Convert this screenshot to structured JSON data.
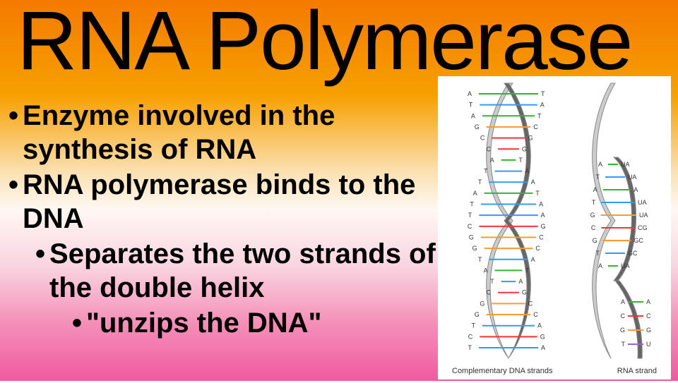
{
  "title": "RNA Polymerase",
  "bullets": {
    "b1": "Enzyme involved in the synthesis of RNA",
    "b2": "RNA polymerase binds to the DNA",
    "b3": "Separates the two strands of the double helix",
    "b4": "\"unzips the DNA\""
  },
  "bullet_dot": "•",
  "figure": {
    "caption_left": "Complementary DNA strands",
    "caption_right": "RNA strand",
    "strand_outline_color": "#888888",
    "strand_fill_light": "#cccccc",
    "strand_fill_dark": "#666666",
    "base_colors": {
      "A": "#2eb82e",
      "T": "#3399ff",
      "G": "#ff9933",
      "C": "#ff3333",
      "U": "#9966cc"
    },
    "background": "#ffffff",
    "left_pairs": [
      {
        "l": "A",
        "r": "T"
      },
      {
        "l": "T",
        "r": "A"
      },
      {
        "l": "A",
        "r": "T"
      },
      {
        "l": "G",
        "r": "C"
      },
      {
        "l": "C",
        "r": "G"
      },
      {
        "l": "C",
        "r": "G"
      },
      {
        "l": "A",
        "r": "T"
      },
      {
        "l": "T",
        "r": "A"
      },
      {
        "l": "T",
        "r": "A"
      },
      {
        "l": "A",
        "r": "T"
      },
      {
        "l": "T",
        "r": "A"
      },
      {
        "l": "T",
        "r": "A"
      },
      {
        "l": "C",
        "r": "G"
      },
      {
        "l": "G",
        "r": "C"
      },
      {
        "l": "G",
        "r": "C"
      },
      {
        "l": "T",
        "r": "A"
      },
      {
        "l": "A",
        "r": "T"
      },
      {
        "l": "T",
        "r": "A"
      },
      {
        "l": "C",
        "r": "G"
      },
      {
        "l": "G",
        "r": "C"
      },
      {
        "l": "G",
        "r": "C"
      },
      {
        "l": "T",
        "r": "A"
      },
      {
        "l": "C",
        "r": "G"
      },
      {
        "l": "T",
        "r": "A"
      }
    ],
    "rna_pairs": [
      {
        "l": "A",
        "r": "UA"
      },
      {
        "l": "T",
        "r": "UA"
      },
      {
        "l": "A",
        "r": "A"
      },
      {
        "l": "T",
        "r": "UA"
      },
      {
        "l": "G",
        "r": "UA"
      },
      {
        "l": "C",
        "r": "CG"
      },
      {
        "l": "G",
        "r": "GC"
      },
      {
        "l": "T",
        "r": "GC"
      },
      {
        "l": "A",
        "r": "UA"
      }
    ],
    "bottom_right": [
      {
        "l": "A",
        "r": "A"
      },
      {
        "l": "C",
        "r": "C"
      },
      {
        "l": "G",
        "r": "G"
      },
      {
        "l": "T",
        "r": "U"
      }
    ]
  },
  "colors": {
    "text": "#000000",
    "gradient_top": "#f47a00",
    "gradient_bottom": "#f05aa0"
  },
  "typography": {
    "title_fontsize": 118,
    "bullet_fontsize": 40,
    "bullet_fontweight": 700
  }
}
